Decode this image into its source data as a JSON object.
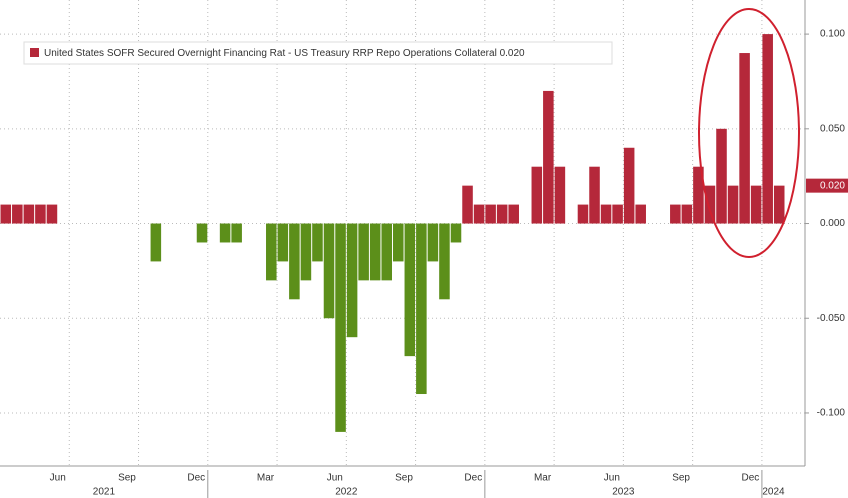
{
  "chart_data": {
    "type": "bar",
    "series_name": "United States SOFR Secured Overnight Financing Rat - US Treasury RRP Repo Operations Collateral",
    "last_value": {
      "value": 0.02,
      "label": "0.020"
    },
    "positive_color": "#b5283a",
    "negative_color": "#5c8f1a",
    "categories": [
      null,
      null,
      null,
      null,
      "Jun",
      null,
      null,
      null,
      null,
      null,
      "Sep",
      null,
      null,
      null,
      null,
      null,
      "Dec",
      null,
      null,
      null,
      null,
      null,
      "Mar",
      null,
      null,
      null,
      null,
      null,
      "Jun",
      null,
      null,
      null,
      null,
      null,
      "Sep",
      null,
      null,
      null,
      null,
      null,
      "Dec",
      null,
      null,
      null,
      null,
      null,
      "Mar",
      null,
      null,
      null,
      null,
      null,
      "Jun",
      null,
      null,
      null,
      null,
      null,
      "Sep",
      null,
      null,
      null,
      null,
      null,
      "Dec",
      null,
      null,
      null
    ],
    "category_groups": [
      {
        "label": "2021",
        "count": 18
      },
      {
        "label": "2022",
        "count": 24
      },
      {
        "label": "2023",
        "count": 24
      },
      {
        "label": "2024",
        "count": 2
      }
    ],
    "values": [
      0.01,
      0.01,
      0.01,
      0.01,
      0.01,
      0,
      0,
      0,
      0,
      0,
      0,
      0,
      0,
      -0.02,
      0,
      0,
      0,
      -0.01,
      0,
      -0.01,
      -0.01,
      0,
      0,
      -0.03,
      -0.02,
      -0.04,
      -0.03,
      -0.02,
      -0.05,
      -0.11,
      -0.06,
      -0.03,
      -0.03,
      -0.03,
      -0.02,
      -0.07,
      -0.09,
      -0.02,
      -0.04,
      -0.01,
      0.02,
      0.01,
      0.01,
      0.01,
      0.01,
      0,
      0.03,
      0.07,
      0.03,
      0,
      0.01,
      0.03,
      0.01,
      0.01,
      0.04,
      0.01,
      0,
      0,
      0.01,
      0.01,
      0.03,
      0.02,
      0.05,
      0.02,
      0.09,
      0.02,
      0.1,
      0.02
    ],
    "ylim": [
      -0.128,
      0.118
    ],
    "yticks": [
      {
        "value": 0.1,
        "label": "0.100"
      },
      {
        "value": 0.05,
        "label": "0.050"
      },
      {
        "value": 0,
        "label": "0.000"
      },
      {
        "value": -0.05,
        "label": "-0.050"
      },
      {
        "value": -0.1,
        "label": "-0.100"
      }
    ],
    "grid": true
  }
}
